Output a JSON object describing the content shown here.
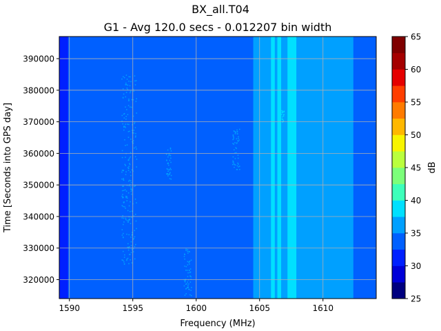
{
  "chart_data": {
    "type": "heatmap",
    "title": "BX_all.T04",
    "subtitle": "G1 - Avg 120.0 secs - 0.012207 bin width",
    "xlabel": "Frequency (MHz)",
    "ylabel": "Time [Seconds into GPS day]",
    "xlim": [
      1589.2,
      1614.2
    ],
    "ylim": [
      314000,
      397000
    ],
    "x_ticks": [
      1590,
      1595,
      1600,
      1605,
      1610
    ],
    "y_ticks": [
      320000,
      330000,
      340000,
      350000,
      360000,
      370000,
      380000,
      390000
    ],
    "grid": true,
    "colorbar": {
      "label": "dB",
      "min": 25,
      "max": 65,
      "step": 2.5,
      "ticks": [
        25,
        30,
        35,
        40,
        45,
        50,
        55,
        60,
        65
      ],
      "colormap": [
        "#00007f",
        "#0000d8",
        "#0020ff",
        "#0060ff",
        "#00a0ff",
        "#00e0ff",
        "#3dffba",
        "#7cff7a",
        "#baff3d",
        "#f8f500",
        "#ffb800",
        "#ff7b00",
        "#ff3e00",
        "#e50000",
        "#a50000",
        "#7f0000"
      ]
    },
    "background_level_db": 33.8,
    "frequency_bands": [
      {
        "from": 1589.2,
        "to": 1589.9,
        "level_db": 31.5
      },
      {
        "from": 1589.9,
        "to": 1604.5,
        "level_db": 33.8
      },
      {
        "from": 1604.5,
        "to": 1612.4,
        "level_db": 36.2
      },
      {
        "from": 1605.9,
        "to": 1606.2,
        "level_db": 38.5
      },
      {
        "from": 1606.4,
        "to": 1606.7,
        "level_db": 38.5
      },
      {
        "from": 1607.2,
        "to": 1607.9,
        "level_db": 38.5
      },
      {
        "from": 1612.4,
        "to": 1614.2,
        "level_db": 33.8
      }
    ],
    "scattered_features": [
      {
        "f_center": 1594.7,
        "f_spread": 0.6,
        "t_from": 325000,
        "t_to": 385000,
        "level_db": 36.2
      },
      {
        "f_center": 1597.8,
        "f_spread": 0.2,
        "t_from": 352000,
        "t_to": 362000,
        "level_db": 36.2
      },
      {
        "f_center": 1603.1,
        "f_spread": 0.3,
        "t_from": 355000,
        "t_to": 368000,
        "level_db": 36.2
      },
      {
        "f_center": 1599.3,
        "f_spread": 0.3,
        "t_from": 315000,
        "t_to": 330000,
        "level_db": 36.2
      },
      {
        "f_center": 1606.8,
        "f_spread": 0.1,
        "t_from": 370000,
        "t_to": 374000,
        "level_db": 38.5
      }
    ]
  }
}
